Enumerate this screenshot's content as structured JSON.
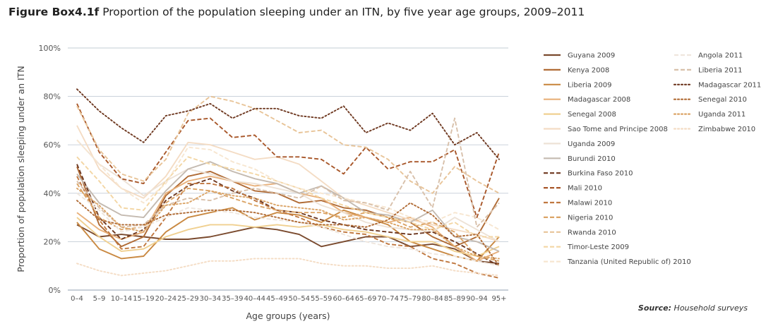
{
  "title": {
    "lead": "Figure Box4.1f",
    "text": "Proportion of the population sleeping under an ITN, by five year age groups, 2009–2011"
  },
  "source": {
    "lead": "Source:",
    "text": "Household surveys"
  },
  "chart_data": {
    "type": "line",
    "title": "Proportion of the population sleeping under an ITN, by five year age groups, 2009–2011",
    "xlabel": "Age groups (years)",
    "ylabel": "Proportion of population sleeping under an ITN",
    "ylim": [
      0,
      100
    ],
    "yticks": [
      0,
      20,
      40,
      60,
      80,
      100
    ],
    "ytick_labels": [
      "0%",
      "20%",
      "40%",
      "60%",
      "80%",
      "100%"
    ],
    "grid": true,
    "legend_position": "right",
    "categories": [
      "0–4",
      "5–9",
      "10–14",
      "15–19",
      "20–24",
      "25–29",
      "30–34",
      "35–39",
      "40–44",
      "45–49",
      "50–54",
      "55–59",
      "60–64",
      "65–69",
      "70–74",
      "75–79",
      "80–84",
      "85–89",
      "90–94",
      "95+"
    ],
    "series": [
      {
        "name": "Guyana 2009",
        "color": "#7a4a2e",
        "dash": "solid",
        "values": [
          27,
          22,
          23,
          22,
          21,
          21,
          22,
          24,
          26,
          25,
          23,
          18,
          20,
          22,
          22,
          18,
          19,
          17,
          12,
          11
        ]
      },
      {
        "name": "Kenya 2008",
        "color": "#b06b35",
        "dash": "solid",
        "values": [
          51,
          27,
          18,
          22,
          39,
          47,
          49,
          45,
          41,
          40,
          36,
          37,
          34,
          33,
          30,
          28,
          22,
          18,
          22,
          38
        ]
      },
      {
        "name": "Liberia 2009",
        "color": "#c98942",
        "dash": "solid",
        "values": [
          28,
          17,
          13,
          14,
          24,
          30,
          32,
          34,
          29,
          32,
          31,
          28,
          33,
          30,
          27,
          20,
          17,
          14,
          12,
          22
        ]
      },
      {
        "name": "Madagascar 2008",
        "color": "#e8b07a",
        "dash": "solid",
        "values": [
          32,
          25,
          21,
          24,
          40,
          45,
          47,
          45,
          43,
          44,
          40,
          38,
          32,
          30,
          28,
          30,
          26,
          18,
          12,
          16
        ]
      },
      {
        "name": "Senegal 2008",
        "color": "#f0d090",
        "dash": "solid",
        "values": [
          30,
          22,
          16,
          17,
          22,
          25,
          27,
          27,
          26,
          27,
          26,
          27,
          25,
          24,
          22,
          20,
          20,
          16,
          14,
          18
        ]
      },
      {
        "name": "Sao Tome and Principe 2008",
        "color": "#f4dcc4",
        "dash": "solid",
        "values": [
          68,
          50,
          42,
          38,
          47,
          61,
          60,
          57,
          54,
          55,
          52,
          45,
          38,
          35,
          32,
          29,
          27,
          25,
          23,
          20
        ]
      },
      {
        "name": "Uganda 2009",
        "color": "#ede2d6",
        "dash": "solid",
        "values": [
          62,
          52,
          46,
          39,
          45,
          50,
          48,
          45,
          44,
          42,
          40,
          35,
          32,
          28,
          26,
          25,
          24,
          30,
          25,
          20
        ]
      },
      {
        "name": "Burundi 2010",
        "color": "#c4bab0",
        "dash": "solid",
        "values": [
          48,
          36,
          31,
          30,
          41,
          50,
          53,
          49,
          46,
          44,
          40,
          43,
          38,
          32,
          31,
          28,
          33,
          22,
          20,
          16
        ]
      },
      {
        "name": "Burkina Faso 2010",
        "color": "#6e3820",
        "dash": "dash",
        "values": [
          52,
          30,
          21,
          25,
          37,
          43,
          46,
          41,
          38,
          33,
          32,
          29,
          27,
          25,
          24,
          23,
          24,
          20,
          15,
          10
        ]
      },
      {
        "name": "Mali 2010",
        "color": "#a8572a",
        "dash": "dash",
        "values": [
          77,
          57,
          46,
          44,
          57,
          70,
          71,
          63,
          64,
          55,
          55,
          54,
          48,
          59,
          50,
          53,
          53,
          58,
          30,
          57
        ]
      },
      {
        "name": "Malawi 2010",
        "color": "#c07840",
        "dash": "dash",
        "values": [
          47,
          29,
          17,
          18,
          30,
          44,
          44,
          42,
          37,
          33,
          30,
          26,
          24,
          23,
          19,
          18,
          13,
          11,
          7,
          5
        ]
      },
      {
        "name": "Nigeria 2010",
        "color": "#dba466",
        "dash": "dash",
        "values": [
          44,
          30,
          25,
          26,
          36,
          42,
          41,
          38,
          35,
          33,
          32,
          32,
          30,
          32,
          30,
          26,
          28,
          24,
          14,
          12
        ]
      },
      {
        "name": "Rwanda 2010",
        "color": "#e8c498",
        "dash": "dash",
        "values": [
          76,
          58,
          48,
          45,
          54,
          73,
          80,
          78,
          75,
          70,
          65,
          66,
          60,
          59,
          54,
          45,
          40,
          51,
          45,
          40
        ]
      },
      {
        "name": "Timor-Leste 2009",
        "color": "#f3d6a4",
        "dash": "dash",
        "values": [
          55,
          45,
          34,
          33,
          45,
          55,
          52,
          50,
          48,
          45,
          42,
          38,
          35,
          32,
          30,
          28,
          25,
          28,
          22,
          22
        ]
      },
      {
        "name": "Tanzania (United Republic of) 2010",
        "color": "#f7e6d0",
        "dash": "dash",
        "values": [
          62,
          52,
          42,
          36,
          44,
          59,
          58,
          53,
          50,
          45,
          42,
          40,
          38,
          36,
          34,
          30,
          28,
          32,
          30,
          25
        ]
      },
      {
        "name": "Angola 2011",
        "color": "#efe6dd",
        "dash": "dash",
        "values": [
          40,
          33,
          24,
          26,
          30,
          34,
          33,
          32,
          30,
          29,
          28,
          26,
          23,
          20,
          18,
          17,
          15,
          14,
          12,
          10
        ]
      },
      {
        "name": "Liberia 2011",
        "color": "#d8c0aa",
        "dash": "dash",
        "values": [
          45,
          34,
          26,
          27,
          35,
          38,
          37,
          40,
          42,
          40,
          38,
          43,
          37,
          36,
          33,
          49,
          34,
          71,
          26,
          36
        ]
      },
      {
        "name": "Madagascar 2011",
        "color": "#6e3820",
        "dash": "dot",
        "values": [
          83,
          74,
          67,
          61,
          72,
          74,
          77,
          71,
          75,
          75,
          72,
          71,
          76,
          65,
          69,
          66,
          73,
          60,
          65,
          54
        ]
      },
      {
        "name": "Senegal 2010",
        "color": "#b06b35",
        "dash": "dot",
        "values": [
          37,
          29,
          27,
          27,
          31,
          32,
          33,
          33,
          32,
          30,
          28,
          27,
          27,
          26,
          29,
          36,
          31,
          22,
          23,
          10
        ]
      },
      {
        "name": "Uganda 2011",
        "color": "#dba466",
        "dash": "dot",
        "values": [
          42,
          35,
          26,
          24,
          35,
          36,
          41,
          39,
          38,
          35,
          34,
          33,
          29,
          30,
          28,
          25,
          25,
          18,
          14,
          13
        ]
      },
      {
        "name": "Zimbabwe 2010",
        "color": "#f4dcc4",
        "dash": "dot",
        "values": [
          11,
          8,
          6,
          7,
          8,
          10,
          12,
          12,
          13,
          13,
          13,
          11,
          10,
          10,
          9,
          9,
          10,
          8,
          7,
          6
        ]
      }
    ]
  }
}
